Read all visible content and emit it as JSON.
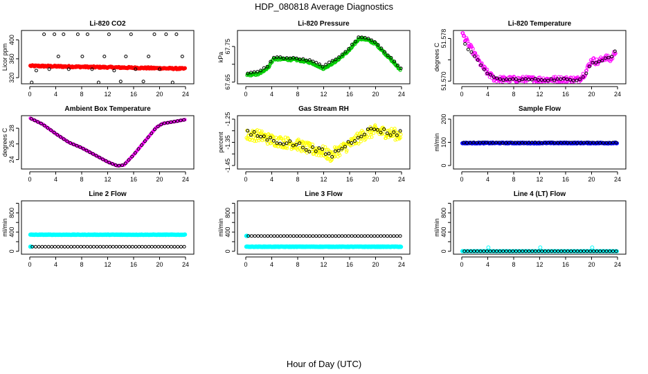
{
  "figure": {
    "title": "HDP_080818  Average Diagnostics",
    "xlabel": "Hour of Day (UTC)"
  },
  "chart_data": [
    {
      "type": "scatter",
      "title": "Li-820 CO2",
      "ylabel": "Licor ppm",
      "xlim": [
        0,
        24
      ],
      "xticks": [
        0,
        4,
        8,
        12,
        16,
        20,
        24
      ],
      "ylim": [
        307,
        420
      ],
      "yticks": [
        320,
        360,
        400
      ],
      "series": [
        {
          "name": "co2_minute",
          "color": "#ff0000",
          "shape": "circle-filled",
          "size": 2.4,
          "gen": {
            "kind": "flat",
            "start": 0.1,
            "end": 23.9,
            "n": 230,
            "base": 345,
            "amp": 1.5,
            "drift": -6
          }
        },
        {
          "name": "co2_averages",
          "color": "#000000",
          "shape": "circle-open",
          "size": 2,
          "x": [
            0.3,
            1.0,
            2.2,
            3.0,
            3.8,
            4.4,
            5.2,
            6.0,
            7.4,
            8.1,
            8.9,
            9.6,
            10.6,
            11.5,
            12.2,
            13.0,
            14.0,
            14.8,
            15.6,
            16.3,
            17.5,
            18.3,
            19.2,
            20.0,
            21.0,
            22.0,
            22.6,
            23.5
          ],
          "y": [
            310,
            335,
            412,
            338,
            412,
            365,
            412,
            338,
            412,
            365,
            412,
            338,
            310,
            365,
            412,
            335,
            312,
            365,
            412,
            338,
            312,
            365,
            412,
            338,
            412,
            310,
            412,
            365
          ]
        }
      ]
    },
    {
      "type": "scatter",
      "title": "Li-820 Pressure",
      "ylabel": "kPa",
      "xlim": [
        0,
        24
      ],
      "xticks": [
        0,
        4,
        8,
        12,
        16,
        20,
        24
      ],
      "ylim": [
        67.645,
        67.795
      ],
      "yticks": [
        67.65,
        67.7,
        67.75
      ],
      "ytick_labels": [
        "67.65",
        "",
        "67.75"
      ],
      "series": [
        {
          "name": "pressure_minute",
          "color": "#00cc00",
          "shape": "circle-open",
          "size": 2,
          "gen": {
            "kind": "interp",
            "start": 0.2,
            "end": 23.8,
            "n": 300,
            "noise": 0.006,
            "kx": [
              0,
              2,
              3.5,
              4.3,
              6,
              8,
              10,
              12,
              14,
              16,
              17.5,
              18.5,
              20,
              22,
              23.8
            ],
            "ky": [
              67.67,
              67.672,
              67.692,
              67.715,
              67.714,
              67.712,
              67.705,
              67.688,
              67.71,
              67.74,
              67.773,
              67.77,
              67.758,
              67.72,
              67.685
            ]
          }
        },
        {
          "name": "pressure_averages",
          "color": "#000000",
          "shape": "circle-open",
          "size": 2,
          "gen": {
            "kind": "interp",
            "start": 0.3,
            "end": 23.9,
            "n": 48,
            "noise": 0.004,
            "kx": [
              0,
              2,
              3.5,
              4.3,
              6,
              8,
              10,
              12,
              14,
              16,
              17.5,
              18.5,
              20,
              22,
              23.8
            ],
            "ky": [
              67.675,
              67.678,
              67.697,
              67.72,
              67.718,
              67.716,
              67.71,
              67.694,
              67.716,
              67.746,
              67.778,
              67.775,
              67.762,
              67.724,
              67.69
            ]
          }
        }
      ]
    },
    {
      "type": "scatter",
      "title": "Li-820 Temperature",
      "ylabel": "degrees C",
      "xlim": [
        0,
        24
      ],
      "xticks": [
        0,
        4,
        8,
        12,
        16,
        20,
        24
      ],
      "ylim": [
        51.5695,
        51.5795
      ],
      "yticks": [
        51.57,
        51.574,
        51.578
      ],
      "ytick_labels": [
        "51.570",
        "",
        "51.578"
      ],
      "series": [
        {
          "name": "temp_minute",
          "color": "#ff00ff",
          "shape": "circle-open",
          "size": 2,
          "gen": {
            "kind": "interp",
            "start": 0.1,
            "end": 23.7,
            "n": 260,
            "noise": 0.0012,
            "kx": [
              0,
              1,
              2,
              3,
              4,
              5,
              6,
              10,
              14,
              18,
              19,
              20,
              21,
              22,
              23,
              23.8
            ],
            "ky": [
              51.579,
              51.577,
              51.575,
              51.573,
              51.5715,
              51.5705,
              51.5703,
              51.5703,
              51.5703,
              51.5703,
              51.5715,
              51.574,
              51.5735,
              51.5745,
              51.574,
              51.576
            ]
          }
        },
        {
          "name": "temp_averages",
          "color": "#000000",
          "shape": "circle-open",
          "size": 2,
          "gen": {
            "kind": "interp",
            "start": 0.5,
            "end": 23.6,
            "n": 48,
            "noise": 0.0004,
            "kx": [
              0,
              1,
              2,
              3,
              4,
              5,
              6,
              10,
              14,
              18,
              19,
              20,
              21,
              22,
              23,
              23.8
            ],
            "ky": [
              51.578,
              51.576,
              51.5745,
              51.573,
              51.5715,
              51.5705,
              51.5703,
              51.5703,
              51.5703,
              51.5703,
              51.5712,
              51.5735,
              51.5735,
              51.5742,
              51.5745,
              51.5762
            ]
          }
        }
      ]
    },
    {
      "type": "scatter",
      "title": "Ambient Box Temperature",
      "ylabel": "degrees C",
      "xlim": [
        0,
        24
      ],
      "xticks": [
        0,
        4,
        8,
        12,
        16,
        20,
        24
      ],
      "ylim": [
        22.8,
        29.6
      ],
      "yticks": [
        24,
        26,
        28
      ],
      "series": [
        {
          "name": "box_temp_minute",
          "color": "#ff00ff",
          "shape": "circle-open",
          "size": 2,
          "gen": {
            "kind": "interp",
            "start": 0.1,
            "end": 23.9,
            "n": 240,
            "noise": 0.0,
            "kx": [
              0,
              2,
              4,
              6,
              8,
              10,
              12,
              13.5,
              14.5,
              16,
              18,
              19.5,
              20.5,
              22,
              24
            ],
            "ky": [
              29.3,
              28.5,
              27.3,
              26.2,
              25.5,
              24.6,
              23.7,
              23.2,
              23.3,
              24.6,
              26.6,
              28.1,
              28.6,
              28.8,
              29.1
            ]
          }
        },
        {
          "name": "box_temp_averages",
          "color": "#000000",
          "shape": "circle-open",
          "size": 2,
          "gen": {
            "kind": "interp",
            "start": 0.25,
            "end": 23.75,
            "n": 48,
            "noise": 0.0,
            "kx": [
              0,
              2,
              4,
              6,
              8,
              10,
              12,
              13.5,
              14.5,
              16,
              18,
              19.5,
              20.5,
              22,
              24
            ],
            "ky": [
              29.3,
              28.5,
              27.3,
              26.2,
              25.5,
              24.6,
              23.7,
              23.2,
              23.3,
              24.6,
              26.6,
              28.1,
              28.6,
              28.8,
              29.1
            ]
          }
        }
      ]
    },
    {
      "type": "scatter",
      "title": "Gas Stream RH",
      "ylabel": "percent",
      "xlim": [
        0,
        24
      ],
      "xticks": [
        0,
        4,
        8,
        12,
        16,
        20,
        24
      ],
      "ylim": [
        -1.465,
        -1.235
      ],
      "yticks": [
        -1.45,
        -1.4,
        -1.35,
        -1.3,
        -1.25
      ],
      "ytick_labels": [
        "-1.45",
        "",
        "-1.35",
        "",
        "-1.25"
      ],
      "series": [
        {
          "name": "rh_minute",
          "color": "#ffff00",
          "shape": "circle-open",
          "size": 2,
          "gen": {
            "kind": "interp",
            "start": 0.1,
            "end": 23.9,
            "n": 330,
            "noise": 0.05,
            "kx": [
              0,
              2,
              4,
              6,
              8,
              10,
              12,
              13,
              14,
              16,
              18,
              20,
              22,
              24
            ],
            "ky": [
              -1.32,
              -1.32,
              -1.34,
              -1.35,
              -1.36,
              -1.38,
              -1.39,
              -1.41,
              -1.39,
              -1.36,
              -1.32,
              -1.3,
              -1.31,
              -1.32
            ]
          }
        },
        {
          "name": "rh_averages",
          "color": "#000000",
          "shape": "circle-open",
          "size": 2,
          "gen": {
            "kind": "interp",
            "start": 0.3,
            "end": 23.8,
            "n": 48,
            "noise": 0.025,
            "kx": [
              0,
              2,
              4,
              6,
              8,
              10,
              12,
              13,
              14,
              16,
              18,
              20,
              22,
              24
            ],
            "ky": [
              -1.31,
              -1.32,
              -1.34,
              -1.35,
              -1.36,
              -1.38,
              -1.39,
              -1.41,
              -1.39,
              -1.35,
              -1.31,
              -1.29,
              -1.31,
              -1.31
            ]
          }
        }
      ]
    },
    {
      "type": "scatter",
      "title": "Sample Flow",
      "ylabel": "ml/min",
      "xlim": [
        0,
        24
      ],
      "xticks": [
        0,
        4,
        8,
        12,
        16,
        20,
        24
      ],
      "ylim": [
        -15,
        215
      ],
      "yticks": [
        0,
        100,
        200
      ],
      "series": [
        {
          "name": "sample_flow_minute",
          "color": "#0000ff",
          "shape": "circle-filled",
          "size": 2.4,
          "gen": {
            "kind": "flat",
            "start": 0.1,
            "end": 23.9,
            "n": 240,
            "base": 97,
            "amp": 2,
            "drift": 0
          }
        },
        {
          "name": "sample_flow_averages",
          "color": "#000000",
          "shape": "circle-open",
          "size": 2,
          "gen": {
            "kind": "flat",
            "start": 0.3,
            "end": 23.8,
            "n": 48,
            "base": 98,
            "amp": 1,
            "drift": 0
          }
        }
      ]
    },
    {
      "type": "scatter",
      "title": "Line 2 Flow",
      "ylabel": "ml/min",
      "xlim": [
        0,
        24
      ],
      "xticks": [
        0,
        4,
        8,
        12,
        16,
        20,
        24
      ],
      "ylim": [
        -60,
        1050
      ],
      "yticks": [
        0,
        200,
        400,
        600,
        800,
        1000
      ],
      "ytick_labels": [
        "0",
        "",
        "400",
        "",
        "800",
        ""
      ],
      "series": [
        {
          "name": "line2_flow_high",
          "color": "#00ffff",
          "shape": "circle-filled",
          "size": 2.6,
          "gen": {
            "kind": "flat",
            "start": 0.1,
            "end": 23.9,
            "n": 240,
            "base": 345,
            "amp": 4,
            "drift": 0
          }
        },
        {
          "name": "line2_flow_low",
          "color": "#00ffff",
          "shape": "circle-filled",
          "size": 2.6,
          "x": [
            0.1,
            0.2
          ],
          "y": [
            95,
            95
          ]
        },
        {
          "name": "line2_flow_averages",
          "color": "#000000",
          "shape": "circle-open",
          "size": 2,
          "gen": {
            "kind": "flat",
            "start": 0.4,
            "end": 23.8,
            "n": 48,
            "base": 95,
            "amp": 1,
            "drift": 0
          }
        }
      ]
    },
    {
      "type": "scatter",
      "title": "Line 3 Flow",
      "ylabel": "ml/min",
      "xlim": [
        0,
        24
      ],
      "xticks": [
        0,
        4,
        8,
        12,
        16,
        20,
        24
      ],
      "ylim": [
        -60,
        1050
      ],
      "yticks": [
        0,
        200,
        400,
        600,
        800,
        1000
      ],
      "ytick_labels": [
        "0",
        "",
        "400",
        "",
        "800",
        ""
      ],
      "series": [
        {
          "name": "line3_flow_low",
          "color": "#00ffff",
          "shape": "circle-filled",
          "size": 2.6,
          "gen": {
            "kind": "flat",
            "start": 0.1,
            "end": 23.9,
            "n": 240,
            "base": 95,
            "amp": 4,
            "drift": 0
          }
        },
        {
          "name": "line3_flow_high",
          "color": "#00ffff",
          "shape": "circle-filled",
          "size": 2.6,
          "x": [
            0.1,
            0.2
          ],
          "y": [
            320,
            320
          ]
        },
        {
          "name": "line3_flow_averages",
          "color": "#000000",
          "shape": "circle-open",
          "size": 2,
          "gen": {
            "kind": "flat",
            "start": 0.4,
            "end": 23.8,
            "n": 48,
            "base": 318,
            "amp": 1,
            "drift": 0
          }
        }
      ]
    },
    {
      "type": "scatter",
      "title": "Line 4 (LT) Flow",
      "ylabel": "ml/min",
      "xlim": [
        0,
        24
      ],
      "xticks": [
        0,
        4,
        8,
        12,
        16,
        20,
        24
      ],
      "ylim": [
        -60,
        1050
      ],
      "yticks": [
        0,
        200,
        400,
        600,
        800,
        1000
      ],
      "ytick_labels": [
        "0",
        "",
        "400",
        "",
        "800",
        ""
      ],
      "series": [
        {
          "name": "line4_flow_minute",
          "color": "#00ffff",
          "shape": "circle-filled",
          "size": 2.4,
          "gen": {
            "kind": "flat",
            "start": 0.1,
            "end": 23.9,
            "n": 240,
            "base": 2,
            "amp": 1,
            "drift": 0
          }
        },
        {
          "name": "line4_flow_spikes",
          "color": "#00ffff",
          "shape": "circle-open",
          "size": 2.4,
          "x": [
            0.1,
            4.1,
            12.1,
            20.1
          ],
          "y": [
            5,
            80,
            80,
            80
          ]
        },
        {
          "name": "line4_flow_averages",
          "color": "#000000",
          "shape": "circle-open",
          "size": 2,
          "gen": {
            "kind": "flat",
            "start": 0.4,
            "end": 23.8,
            "n": 48,
            "base": 2,
            "amp": 0.5,
            "drift": 0
          }
        }
      ]
    }
  ]
}
